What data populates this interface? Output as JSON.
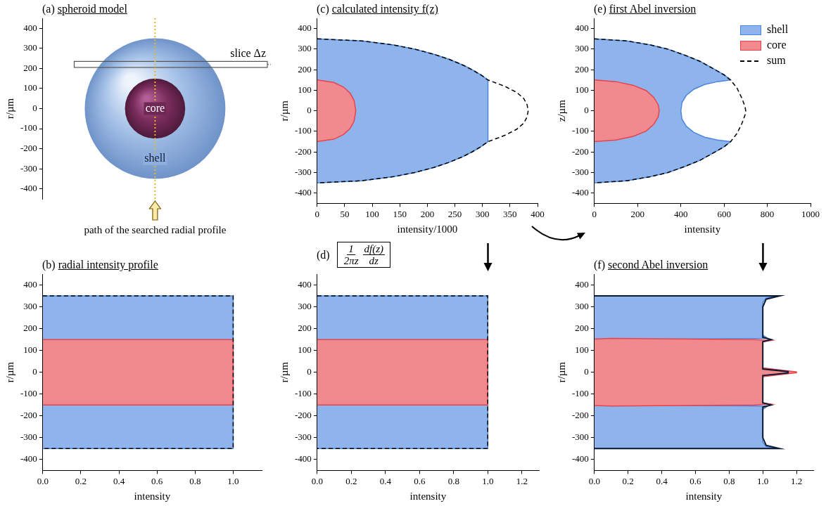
{
  "chart_data": [
    {
      "label": "(a)",
      "title": "spheroid model",
      "type": "diagram",
      "ylabel": "r/µm",
      "ylim": [
        -450,
        450
      ],
      "yticks": [
        -400,
        -300,
        -200,
        -100,
        0,
        100,
        200,
        300,
        400
      ],
      "shell_radius": 350,
      "core_radius": 150,
      "slice": [
        205,
        235
      ],
      "annotations": {
        "slice": "slice Δz",
        "core": "core",
        "shell": "shell",
        "path": "path of the searched radial profile"
      }
    },
    {
      "label": "(b)",
      "title": "radial intensity profile",
      "type": "line",
      "grid": false,
      "xlabel": "intensity",
      "ylabel": "r/µm",
      "xlim": [
        0,
        1.15
      ],
      "xticks": [
        {
          "value": 0,
          "label": "0.0"
        },
        {
          "value": 0.2,
          "label": "0.2"
        },
        {
          "value": 0.4,
          "label": "0.4"
        },
        {
          "value": 0.6,
          "label": "0.6"
        },
        {
          "value": 0.8,
          "label": "0.8"
        },
        {
          "value": 1,
          "label": "1.0"
        }
      ],
      "ylim": [
        -450,
        450
      ],
      "yticks": [
        -400,
        -300,
        -200,
        -100,
        0,
        100,
        200,
        300,
        400
      ],
      "series": [
        {
          "name": "shell",
          "type": "area",
          "color": "#4a86e0",
          "line_style": "solid",
          "x": [
            0,
            1,
            1,
            0
          ],
          "values": [
            350,
            350,
            -350,
            -350
          ]
        },
        {
          "name": "core",
          "type": "area",
          "color": "#e8434b",
          "line_style": "solid",
          "x": [
            0,
            1,
            1,
            0
          ],
          "values": [
            150,
            150,
            -150,
            -150
          ]
        },
        {
          "name": "sum",
          "type": "line",
          "color": "#000000",
          "line_style": "dashed",
          "x": [
            0,
            1,
            1,
            0
          ],
          "values": [
            350,
            350,
            -350,
            -350
          ]
        }
      ]
    },
    {
      "label": "(c)",
      "title": "calculated intensity f(z)",
      "type": "line",
      "grid": false,
      "xlabel": "intensity/1000",
      "ylabel": "r/µm",
      "xlim": [
        0,
        400
      ],
      "xticks": [
        0,
        50,
        100,
        150,
        200,
        250,
        300,
        350,
        400
      ],
      "ylim": [
        -450,
        450
      ],
      "yticks": [
        -400,
        -300,
        -200,
        -100,
        0,
        100,
        200,
        300,
        400
      ],
      "series": [
        {
          "name": "shell",
          "type": "area",
          "color": "#4a86e0",
          "line_style": "solid",
          "x": [
            0,
            81,
            139,
            177,
            212,
            240,
            265,
            281,
            297,
            310,
            310,
            297,
            281,
            265,
            240,
            212,
            177,
            139,
            81,
            0
          ],
          "values": [
            350,
            340,
            320,
            300,
            275,
            250,
            222,
            200,
            175,
            150,
            -150,
            -175,
            -200,
            -222,
            -250,
            -275,
            -300,
            -320,
            -340,
            -350
          ]
        },
        {
          "name": "core",
          "type": "area",
          "color": "#e8434b",
          "line_style": "solid",
          "x": [
            0,
            30,
            48,
            60,
            67,
            70,
            67,
            60,
            48,
            30,
            0
          ],
          "values": [
            150,
            138,
            115,
            85,
            50,
            0,
            -50,
            -85,
            -115,
            -138,
            -150
          ]
        },
        {
          "name": "sum",
          "type": "line",
          "color": "#000000",
          "line_style": "dashed",
          "x": [
            0,
            81,
            139,
            177,
            212,
            240,
            265,
            281,
            297,
            310,
            340,
            362,
            375,
            381,
            383,
            381,
            375,
            362,
            340,
            310,
            297,
            281,
            265,
            240,
            212,
            177,
            139,
            81,
            0
          ],
          "values": [
            350,
            340,
            320,
            300,
            275,
            250,
            222,
            200,
            175,
            150,
            120,
            90,
            60,
            30,
            0,
            -30,
            -60,
            -90,
            -120,
            -150,
            -175,
            -200,
            -222,
            -250,
            -275,
            -300,
            -320,
            -340,
            -350
          ]
        }
      ]
    },
    {
      "label": "(d)",
      "title_formula": [
        {
          "numerator": "1",
          "denominator": "2πz"
        },
        {
          "numerator": "df(z)",
          "denominator": "dz"
        }
      ],
      "type": "line",
      "grid": false,
      "xlabel": "intensity",
      "ylabel": "r/µm",
      "xlim": [
        0,
        1.3
      ],
      "xticks": [
        {
          "value": 0,
          "label": "0.0"
        },
        {
          "value": 0.2,
          "label": "0.2"
        },
        {
          "value": 0.4,
          "label": "0.4"
        },
        {
          "value": 0.6,
          "label": "0.6"
        },
        {
          "value": 0.8,
          "label": "0.8"
        },
        {
          "value": 1,
          "label": "1.0"
        },
        {
          "value": 1.2,
          "label": "1.2"
        }
      ],
      "ylim": [
        -450,
        450
      ],
      "yticks": [
        -400,
        -300,
        -200,
        -100,
        0,
        100,
        200,
        300,
        400
      ],
      "series": [
        {
          "name": "shell",
          "type": "area",
          "color": "#4a86e0",
          "line_style": "solid",
          "x": [
            0,
            1,
            1,
            0
          ],
          "values": [
            350,
            350,
            -350,
            -350
          ]
        },
        {
          "name": "core",
          "type": "area",
          "color": "#e8434b",
          "line_style": "solid",
          "x": [
            0,
            1,
            1,
            0
          ],
          "values": [
            150,
            150,
            -150,
            -150
          ]
        },
        {
          "name": "sum",
          "type": "line",
          "color": "#000000",
          "line_style": "dashed",
          "x": [
            0,
            1,
            1,
            0
          ],
          "values": [
            350,
            350,
            -350,
            -350
          ]
        }
      ]
    },
    {
      "label": "(e)",
      "title": "first Abel inversion",
      "type": "line",
      "grid": false,
      "legend": "top-right",
      "xlabel": "intensity",
      "ylabel": "z/µm",
      "xlim": [
        0,
        1000
      ],
      "xticks": [
        0,
        200,
        400,
        600,
        800,
        1000
      ],
      "ylim": [
        -450,
        450
      ],
      "yticks": [
        -400,
        -300,
        -200,
        -100,
        0,
        100,
        200,
        300,
        400
      ],
      "series": [
        {
          "name": "shell",
          "type": "area",
          "color": "#4a86e0",
          "line_style": "solid",
          "x": [
            0,
            150,
            260,
            340,
            420,
            490,
            550,
            600,
            630,
            570,
            510,
            460,
            425,
            405,
            400,
            405,
            425,
            460,
            510,
            570,
            630,
            600,
            550,
            490,
            420,
            340,
            260,
            150,
            0
          ],
          "values": [
            350,
            340,
            320,
            300,
            270,
            240,
            205,
            175,
            150,
            142,
            128,
            105,
            75,
            40,
            0,
            -40,
            -75,
            -105,
            -128,
            -142,
            -150,
            -175,
            -205,
            -240,
            -270,
            -300,
            -320,
            -340,
            -350
          ]
        },
        {
          "name": "core",
          "type": "area",
          "color": "#e8434b",
          "line_style": "solid",
          "x": [
            0,
            100,
            180,
            240,
            275,
            295,
            300,
            295,
            275,
            240,
            180,
            100,
            0
          ],
          "values": [
            150,
            142,
            124,
            98,
            65,
            30,
            0,
            -30,
            -65,
            -98,
            -124,
            -142,
            -150
          ]
        },
        {
          "name": "sum",
          "type": "line",
          "color": "#000000",
          "line_style": "dashed",
          "x": [
            0,
            150,
            260,
            340,
            420,
            490,
            550,
            600,
            630,
            660,
            683,
            697,
            700,
            697,
            683,
            660,
            630,
            600,
            550,
            490,
            420,
            340,
            260,
            150,
            0
          ],
          "values": [
            350,
            340,
            320,
            300,
            270,
            240,
            205,
            175,
            150,
            110,
            60,
            20,
            0,
            -20,
            -60,
            -110,
            -150,
            -175,
            -205,
            -240,
            -270,
            -300,
            -320,
            -340,
            -350
          ]
        }
      ]
    },
    {
      "label": "(f)",
      "title": "second Abel inversion",
      "type": "line",
      "grid": false,
      "xlabel": "intensity",
      "ylabel": "r/µm",
      "xlim": [
        0,
        1.3
      ],
      "xticks": [
        {
          "value": 0,
          "label": "0.0"
        },
        {
          "value": 0.2,
          "label": "0.2"
        },
        {
          "value": 0.4,
          "label": "0.4"
        },
        {
          "value": 0.6,
          "label": "0.6"
        },
        {
          "value": 0.8,
          "label": "0.8"
        },
        {
          "value": 1,
          "label": "1.0"
        },
        {
          "value": 1.2,
          "label": "1.2"
        }
      ],
      "ylim": [
        -450,
        450
      ],
      "yticks": [
        -400,
        -300,
        -200,
        -100,
        0,
        100,
        200,
        300,
        400
      ],
      "series": [
        {
          "name": "shell",
          "type": "area",
          "color": "#4a86e0",
          "line_style": "solid",
          "x": [
            0,
            1.08,
            1.02,
            1.0,
            1.0,
            1.03,
            0.2,
            0.05,
            0.02,
            0.03,
            0.25,
            0.03,
            0.02,
            0.05,
            0.2,
            1.03,
            1.0,
            1.0,
            1.02,
            1.08,
            0
          ],
          "values": [
            350,
            350,
            340,
            320,
            170,
            155,
            150,
            140,
            100,
            10,
            0,
            -10,
            -100,
            -140,
            -150,
            -155,
            -170,
            -320,
            -340,
            -350,
            -350
          ]
        },
        {
          "name": "core",
          "type": "area",
          "color": "#e8434b",
          "line_style": "solid",
          "x": [
            0,
            0.1,
            0.95,
            1.05,
            1.0,
            1.0,
            1.2,
            1.2,
            1.0,
            1.0,
            1.05,
            0.95,
            0.1,
            0
          ],
          "values": [
            152,
            155,
            150,
            146,
            140,
            20,
            2,
            -2,
            -20,
            -140,
            -146,
            -150,
            -155,
            -152
          ]
        },
        {
          "name": "sum",
          "type": "line",
          "color": "#0b1a33",
          "line_style": "solid",
          "x": [
            0,
            1.1,
            1.02,
            1.0,
            1.0,
            1.05,
            1.0,
            1.0,
            1.15,
            1.15,
            1.0,
            1.0,
            1.05,
            1.0,
            1.0,
            1.02,
            1.1,
            0
          ],
          "values": [
            350,
            350,
            335,
            300,
            160,
            150,
            140,
            15,
            3,
            -3,
            -15,
            -140,
            -150,
            -160,
            -300,
            -335,
            -350,
            -350
          ]
        }
      ]
    }
  ]
}
